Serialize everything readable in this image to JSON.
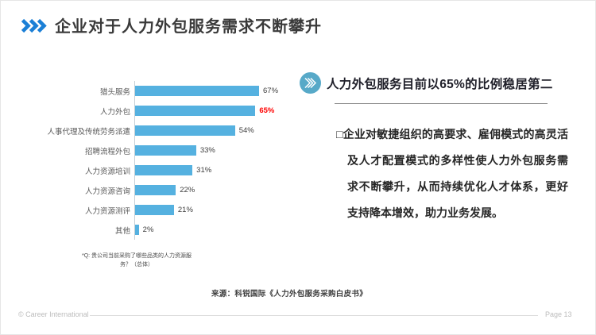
{
  "slide": {
    "title": "企业对于人力外包服务需求不断攀升",
    "source": "来源：科锐国际《人力外包服务采购白皮书》",
    "footer": {
      "copyright": "© Career International",
      "page": "Page 13"
    }
  },
  "chart_data": {
    "type": "bar",
    "orientation": "horizontal",
    "title": "",
    "categories": [
      "猎头服务",
      "人力外包",
      "人事代理及传统劳务派遣",
      "招聘流程外包",
      "人力资源培训",
      "人力资源咨询",
      "人力资源测评",
      "其他"
    ],
    "values": [
      67,
      65,
      54,
      33,
      31,
      22,
      21,
      2
    ],
    "value_labels": [
      "67%",
      "65%",
      "54%",
      "33%",
      "31%",
      "22%",
      "21%",
      "2%"
    ],
    "xlim": [
      0,
      70
    ],
    "grid": false,
    "legend": false,
    "bar_color": "#55b1e0",
    "highlight_index": 1,
    "highlight_color": "#ff0000",
    "footnote": "*Q: 贵公司当前采购了哪些品类的人力资源服务？（总体）"
  },
  "right_panel": {
    "heading": "人力外包服务目前以65%的比例稳居第二",
    "bullet": "□",
    "body": "企业对敏捷组织的高要求、雇佣模式的高灵活及人才配置模式的多样性使人力外包服务需求不断攀升，从而持续优化人才体系，更好支持降本增效，助力业务发展。"
  },
  "colors": {
    "accent_blue": "#1b7fd6",
    "bar_blue": "#55b1e0",
    "icon_circle_blue": "#57a9c8",
    "highlight_red": "#ff0000"
  }
}
